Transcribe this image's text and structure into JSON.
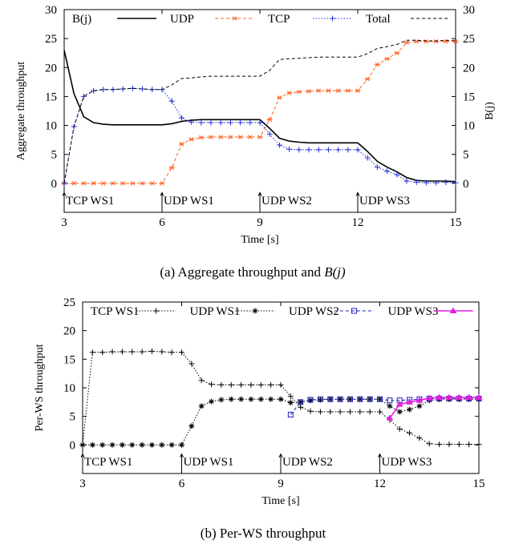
{
  "chart_data": [
    {
      "type": "line",
      "xlabel": "Time [s]",
      "ylabel": "Aggregate throughput",
      "y2label": "B(j)",
      "xlim": [
        3,
        15
      ],
      "ylim": [
        -5,
        30
      ],
      "y2lim": [
        -5,
        30
      ],
      "x_ticks": [
        "3",
        "6",
        "9",
        "12",
        "15"
      ],
      "y_ticks": [
        "0",
        "5",
        "10",
        "15",
        "20",
        "25",
        "30"
      ],
      "y2_ticks": [
        "0",
        "5",
        "10",
        "15",
        "20",
        "25",
        "30"
      ],
      "events": [
        {
          "x": 3,
          "label": "TCP WS1"
        },
        {
          "x": 6,
          "label": "UDP WS1"
        },
        {
          "x": 9,
          "label": "UDP WS2"
        },
        {
          "x": 12,
          "label": "UDP WS3"
        }
      ],
      "legend_position": "top, in one row",
      "series": [
        {
          "name": "B(j)",
          "style": "solid",
          "color": "#000000",
          "marker": "none",
          "x": [
            3,
            3.3,
            3.6,
            3.9,
            4.2,
            4.5,
            4.8,
            5.1,
            5.4,
            5.7,
            6,
            6.3,
            6.6,
            6.9,
            7.2,
            7.5,
            7.8,
            8.1,
            8.4,
            8.7,
            9,
            9.3,
            9.6,
            9.9,
            10.2,
            10.5,
            10.8,
            11.1,
            11.4,
            11.7,
            12,
            12.3,
            12.6,
            12.9,
            13.2,
            13.5,
            13.8,
            14.1,
            14.4,
            14.7,
            15
          ],
          "y": [
            23,
            15.5,
            11.5,
            10.5,
            10.2,
            10.1,
            10.1,
            10.1,
            10.1,
            10.1,
            10.1,
            10.3,
            10.7,
            10.9,
            11,
            11,
            11,
            11,
            11,
            11,
            11,
            9.5,
            7.8,
            7.3,
            7.1,
            7,
            7,
            7,
            7,
            7,
            7,
            5.5,
            3.8,
            2.8,
            2,
            1,
            0.5,
            0.4,
            0.4,
            0.4,
            0.3
          ]
        },
        {
          "name": "UDP",
          "style": "dashed",
          "color": "#ff6020",
          "marker": "star",
          "x": [
            3,
            3.3,
            3.6,
            3.9,
            4.2,
            4.5,
            4.8,
            5.1,
            5.4,
            5.7,
            6,
            6.3,
            6.6,
            6.9,
            7.2,
            7.5,
            7.8,
            8.1,
            8.4,
            8.7,
            9,
            9.3,
            9.6,
            9.9,
            10.2,
            10.5,
            10.8,
            11.1,
            11.4,
            11.7,
            12,
            12.3,
            12.6,
            12.9,
            13.2,
            13.5,
            13.8,
            14.1,
            14.4,
            14.7,
            15
          ],
          "y": [
            0,
            0,
            0,
            0,
            0,
            0,
            0,
            0,
            0,
            0,
            0,
            2.7,
            6.8,
            7.6,
            7.9,
            8,
            8,
            8,
            8,
            8,
            8,
            11,
            14.8,
            15.6,
            15.8,
            15.9,
            16,
            16,
            16,
            16,
            16,
            18,
            20.5,
            21.5,
            22.5,
            24.3,
            24.5,
            24.5,
            24.5,
            24.5,
            24.5
          ]
        },
        {
          "name": "TCP",
          "style": "dotted",
          "color": "#2030e0",
          "marker": "plus",
          "x": [
            3,
            3.3,
            3.6,
            3.9,
            4.2,
            4.5,
            4.8,
            5.1,
            5.4,
            5.7,
            6,
            6.3,
            6.6,
            6.9,
            7.2,
            7.5,
            7.8,
            8.1,
            8.4,
            8.7,
            9,
            9.3,
            9.6,
            9.9,
            10.2,
            10.5,
            10.8,
            11.1,
            11.4,
            11.7,
            12,
            12.3,
            12.6,
            12.9,
            13.2,
            13.5,
            13.8,
            14.1,
            14.4,
            14.7,
            15
          ],
          "y": [
            0,
            9.8,
            15,
            16,
            16.2,
            16.2,
            16.3,
            16.4,
            16.3,
            16.2,
            16.2,
            14.2,
            11.3,
            10.6,
            10.5,
            10.5,
            10.5,
            10.5,
            10.5,
            10.5,
            10.5,
            8.5,
            6.6,
            5.9,
            5.8,
            5.8,
            5.8,
            5.8,
            5.8,
            5.8,
            5.8,
            4.4,
            2.8,
            2.1,
            1.5,
            0.4,
            0.2,
            0.1,
            0.1,
            0.2,
            0.1
          ]
        },
        {
          "name": "Total",
          "style": "dashed",
          "color": "#000000",
          "marker": "none",
          "x": [
            3,
            3.3,
            3.6,
            3.9,
            4.2,
            4.5,
            4.8,
            5.1,
            5.4,
            5.7,
            6,
            6.3,
            6.6,
            6.9,
            7.2,
            7.5,
            7.8,
            8.1,
            8.4,
            8.7,
            9,
            9.3,
            9.6,
            9.9,
            10.2,
            10.5,
            10.8,
            11.1,
            11.4,
            11.7,
            12,
            12.3,
            12.6,
            12.9,
            13.2,
            13.5,
            13.8,
            14.1,
            14.4,
            14.7,
            15
          ],
          "y": [
            0,
            9.8,
            15,
            16,
            16.2,
            16.2,
            16.3,
            16.4,
            16.3,
            16.2,
            16.2,
            17,
            18.1,
            18.2,
            18.4,
            18.5,
            18.5,
            18.5,
            18.5,
            18.5,
            18.5,
            19.5,
            21.4,
            21.5,
            21.6,
            21.7,
            21.8,
            21.8,
            21.8,
            21.8,
            21.8,
            22.4,
            23.3,
            23.6,
            24,
            24.7,
            24.7,
            24.6,
            24.6,
            24.7,
            24.6
          ]
        }
      ]
    },
    {
      "type": "line",
      "xlabel": "Time [s]",
      "ylabel": "Per-WS throughput",
      "xlim": [
        3,
        15
      ],
      "ylim": [
        -5,
        25
      ],
      "x_ticks": [
        "3",
        "6",
        "9",
        "12",
        "15"
      ],
      "y_ticks": [
        "0",
        "5",
        "10",
        "15",
        "20",
        "25"
      ],
      "events": [
        {
          "x": 3,
          "label": "TCP WS1"
        },
        {
          "x": 6,
          "label": "UDP WS1"
        },
        {
          "x": 9,
          "label": "UDP WS2"
        },
        {
          "x": 12,
          "label": "UDP WS3"
        }
      ],
      "legend_position": "top, in one row",
      "series": [
        {
          "name": "TCP WS1",
          "style": "dotted",
          "color": "#000000",
          "marker": "plus",
          "x": [
            3,
            3.3,
            3.6,
            3.9,
            4.2,
            4.5,
            4.8,
            5.1,
            5.4,
            5.7,
            6,
            6.3,
            6.6,
            6.9,
            7.2,
            7.5,
            7.8,
            8.1,
            8.4,
            8.7,
            9,
            9.3,
            9.6,
            9.9,
            10.2,
            10.5,
            10.8,
            11.1,
            11.4,
            11.7,
            12,
            12.3,
            12.6,
            12.9,
            13.2,
            13.5,
            13.8,
            14.1,
            14.4,
            14.7,
            15
          ],
          "y": [
            0,
            16.2,
            16.2,
            16.3,
            16.3,
            16.3,
            16.3,
            16.4,
            16.3,
            16.2,
            16.2,
            14.2,
            11.3,
            10.6,
            10.5,
            10.5,
            10.5,
            10.5,
            10.5,
            10.5,
            10.5,
            8.5,
            6.6,
            5.9,
            5.8,
            5.8,
            5.8,
            5.8,
            5.8,
            5.8,
            5.8,
            4.4,
            2.8,
            2.1,
            1.2,
            0.2,
            0.1,
            0.1,
            0.1,
            0.1,
            0.1
          ]
        },
        {
          "name": "UDP WS1",
          "style": "dotted",
          "color": "#000000",
          "marker": "asterisk",
          "x": [
            3,
            3.3,
            3.6,
            3.9,
            4.2,
            4.5,
            4.8,
            5.1,
            5.4,
            5.7,
            6,
            6.3,
            6.6,
            6.9,
            7.2,
            7.5,
            7.8,
            8.1,
            8.4,
            8.7,
            9,
            9.3,
            9.6,
            9.9,
            10.2,
            10.5,
            10.8,
            11.1,
            11.4,
            11.7,
            12,
            12.3,
            12.6,
            12.9,
            13.2,
            13.5,
            13.8,
            14.1,
            14.4,
            14.7,
            15
          ],
          "y": [
            0,
            0,
            0,
            0,
            0,
            0,
            0,
            0,
            0,
            0,
            0,
            3.3,
            6.8,
            7.6,
            7.9,
            8,
            8,
            8,
            8,
            8,
            8,
            7.4,
            7.5,
            7.8,
            7.9,
            8,
            8,
            8,
            8,
            8,
            8,
            6.8,
            5.8,
            6.2,
            6.8,
            7.8,
            8,
            8,
            8,
            8,
            8
          ]
        },
        {
          "name": "UDP WS2",
          "style": "dashed",
          "color": "#2020c0",
          "marker": "square",
          "x": [
            9.3,
            9.6,
            9.9,
            10.2,
            10.5,
            10.8,
            11.1,
            11.4,
            11.7,
            12,
            12.3,
            12.6,
            12.9,
            13.2,
            13.5,
            13.8,
            14.1,
            14.4,
            14.7,
            15
          ],
          "y": [
            5.3,
            7.5,
            7.9,
            8,
            8,
            8,
            8,
            8,
            8,
            8,
            7.8,
            7.8,
            7.9,
            8,
            8.1,
            8.1,
            8.1,
            8.1,
            8.1,
            8.1
          ]
        },
        {
          "name": "UDP WS3",
          "style": "solid",
          "color": "#e020e0",
          "marker": "triangle",
          "x": [
            12.3,
            12.6,
            12.9,
            13.2,
            13.5,
            13.8,
            14.1,
            14.4,
            14.7,
            15
          ],
          "y": [
            4.7,
            7.1,
            7.5,
            7.8,
            8.2,
            8.3,
            8.3,
            8.3,
            8.3,
            8.3
          ]
        }
      ]
    }
  ],
  "captions": {
    "a": "(a) Aggregate throughput and ",
    "a_math": "B(j)",
    "b": "(b) Per-WS throughput"
  }
}
